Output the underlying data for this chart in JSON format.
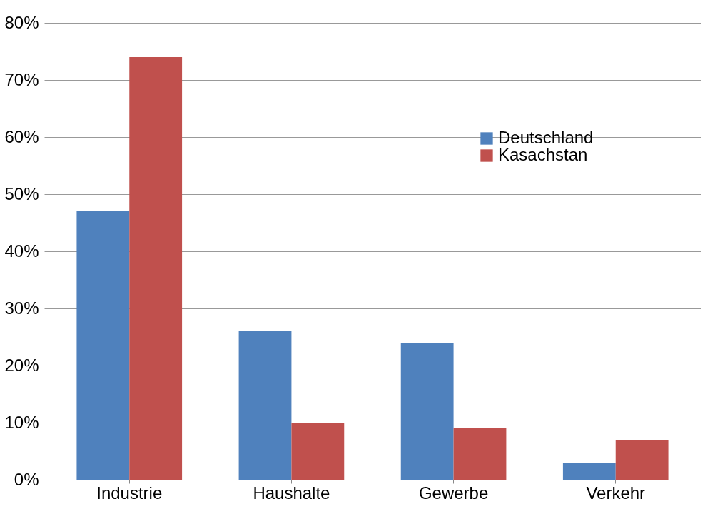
{
  "chart_data": {
    "type": "bar",
    "categories": [
      "Industrie",
      "Haushalte",
      "Gewerbe",
      "Verkehr"
    ],
    "series": [
      {
        "name": "Deutschland",
        "color": "#4f81bd",
        "values": [
          47,
          26,
          24,
          3
        ]
      },
      {
        "name": "Kasachstan",
        "color": "#c0504d",
        "values": [
          74,
          10,
          9,
          7
        ]
      }
    ],
    "ylim": [
      0,
      80
    ],
    "yticks": [
      {
        "value": 0,
        "label": "0%"
      },
      {
        "value": 10,
        "label": "10%"
      },
      {
        "value": 20,
        "label": "20%"
      },
      {
        "value": 30,
        "label": "30%"
      },
      {
        "value": 40,
        "label": "40%"
      },
      {
        "value": 50,
        "label": "50%"
      },
      {
        "value": 60,
        "label": "60%"
      },
      {
        "value": 70,
        "label": "70%"
      },
      {
        "value": 80,
        "label": "80%"
      }
    ],
    "grid": "y",
    "legend": "top right"
  }
}
